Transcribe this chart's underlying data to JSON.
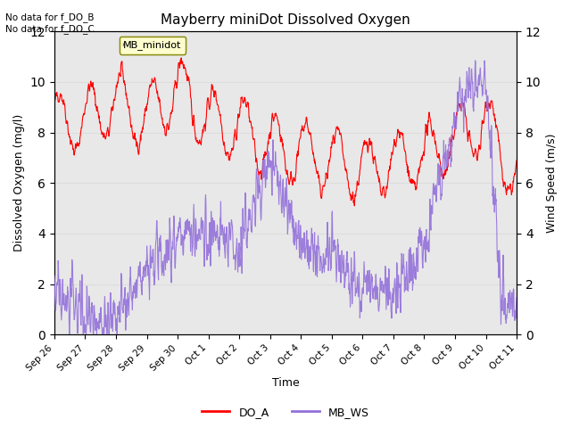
{
  "title": "Mayberry miniDot Dissolved Oxygen",
  "xlabel": "Time",
  "ylabel_left": "Dissolved Oxygen (mg/l)",
  "ylabel_right": "Wind Speed (m/s)",
  "annotation_top_left": "No data for f_DO_B\nNo data for f_DO_C",
  "legend_box_text": "MB_minidot",
  "legend_entries": [
    "DO_A",
    "MB_WS"
  ],
  "line_colors": [
    "red",
    "mediumpurple"
  ],
  "ylim_left": [
    0,
    12
  ],
  "ylim_right": [
    0,
    12
  ],
  "xlim": [
    0,
    360
  ],
  "xtick_labels": [
    "Sep 26",
    "Sep 27",
    "Sep 28",
    "Sep 29",
    "Sep 30",
    "Oct 1",
    "Oct 2",
    "Oct 3",
    "Oct 4",
    "Oct 5",
    "Oct 6",
    "Oct 7",
    "Oct 8",
    "Oct 9",
    "Oct 10",
    "Oct 11"
  ],
  "xtick_positions": [
    0,
    24,
    48,
    72,
    96,
    120,
    144,
    168,
    192,
    216,
    240,
    264,
    288,
    312,
    336,
    360
  ],
  "yticks_left": [
    0,
    2,
    4,
    6,
    8,
    10,
    12
  ],
  "yticks_right": [
    0,
    2,
    4,
    6,
    8,
    10,
    12
  ],
  "grid_color": "#dddddd",
  "bg_color": "#e8e8e8",
  "bg_inner_color": "#f0f0f0"
}
